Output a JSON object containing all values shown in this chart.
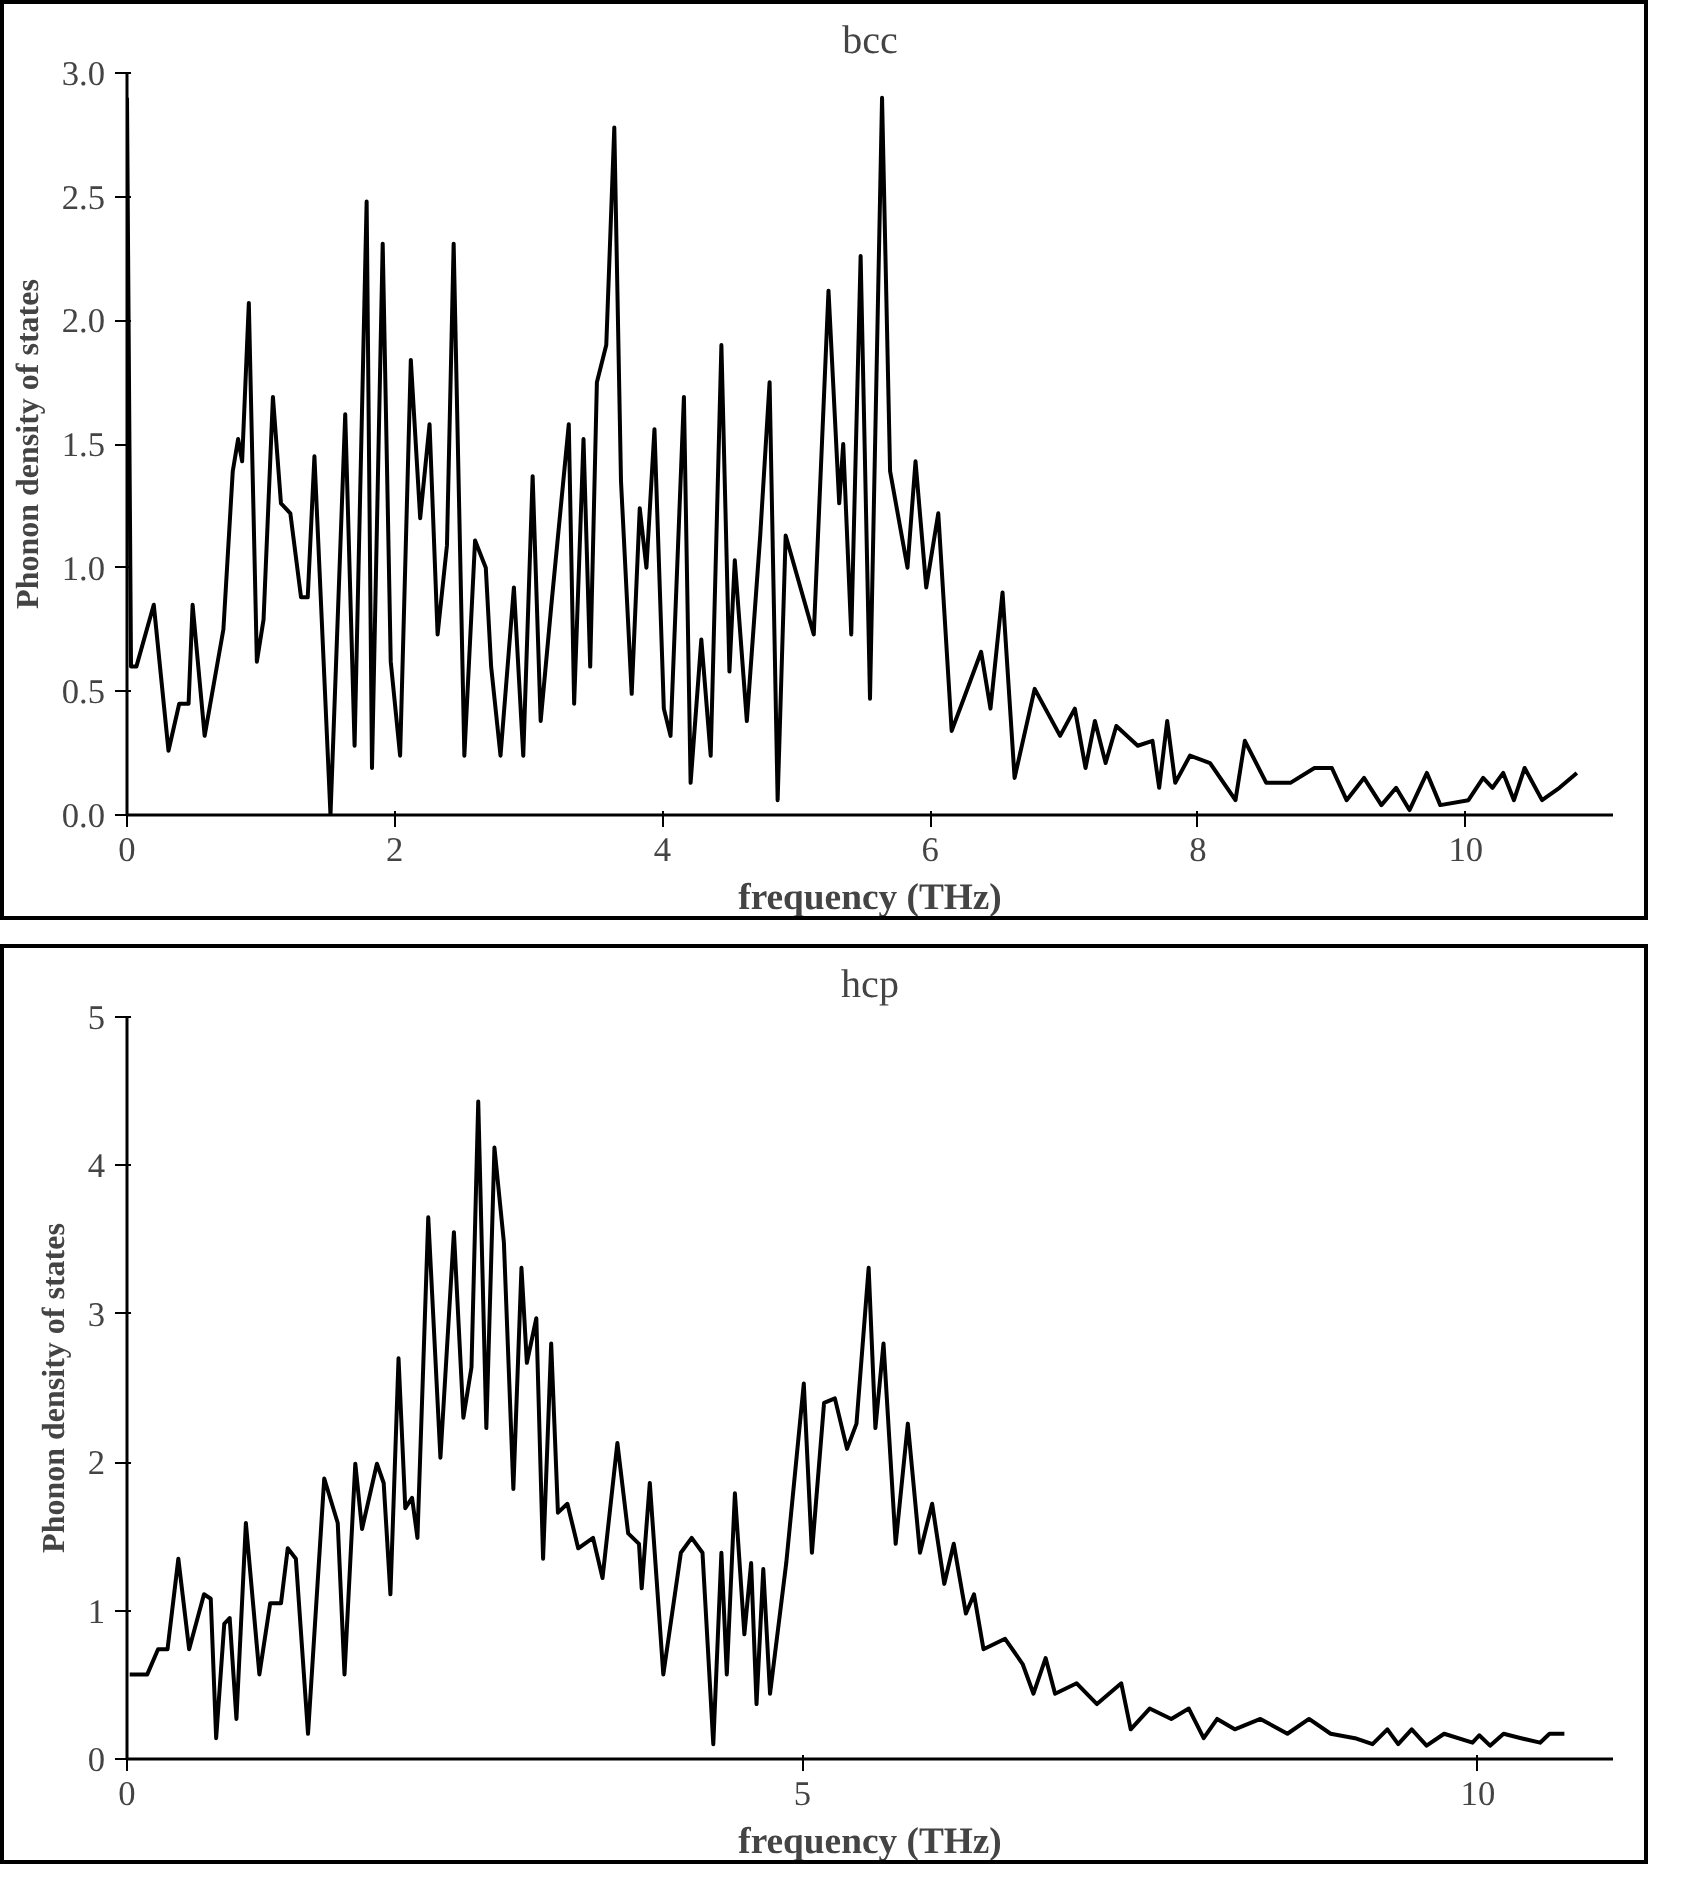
{
  "chart_data": [
    {
      "type": "line",
      "title": "bcc",
      "xlabel": "frequency (THz)",
      "ylabel": "Phonon density of states",
      "xlim": [
        0,
        11.1
      ],
      "ylim": [
        0,
        3.0
      ],
      "xticks": [
        0,
        2,
        4,
        6,
        8,
        10
      ],
      "yticks": [
        {
          "value": 0,
          "label": "0.0"
        },
        {
          "value": 0.5,
          "label": "0.5"
        },
        {
          "value": 1,
          "label": "1.0"
        },
        {
          "value": 1.5,
          "label": "1.5"
        },
        {
          "value": 2,
          "label": "2.0"
        },
        {
          "value": 2.5,
          "label": "2.5"
        },
        {
          "value": 3,
          "label": "3.0"
        }
      ],
      "grid": false,
      "marker": "none",
      "line_style": "solid",
      "series": [
        {
          "color": "#000000",
          "x": [
            0,
            0.03,
            0.07,
            0.2,
            0.31,
            0.39,
            0.46,
            0.49,
            0.58,
            0.72,
            0.79,
            0.83,
            0.86,
            0.91,
            0.97,
            1.02,
            1.09,
            1.15,
            1.22,
            1.3,
            1.35,
            1.4,
            1.52,
            1.63,
            1.7,
            1.79,
            1.83,
            1.91,
            1.97,
            2.04,
            2.12,
            2.19,
            2.26,
            2.32,
            2.39,
            2.44,
            2.52,
            2.6,
            2.68,
            2.72,
            2.79,
            2.89,
            2.96,
            3.03,
            3.09,
            3.17,
            3.3,
            3.34,
            3.41,
            3.46,
            3.51,
            3.58,
            3.64,
            3.69,
            3.77,
            3.83,
            3.88,
            3.94,
            4.01,
            4.06,
            4.16,
            4.21,
            4.29,
            4.36,
            4.44,
            4.5,
            4.54,
            4.63,
            4.73,
            4.8,
            4.86,
            4.92,
            5.13,
            5.24,
            5.32,
            5.35,
            5.41,
            5.48,
            5.55,
            5.64,
            5.7,
            5.83,
            5.89,
            5.97,
            6.06,
            6.16,
            6.25,
            6.38,
            6.45,
            6.54,
            6.63,
            6.78,
            6.97,
            7.08,
            7.16,
            7.23,
            7.31,
            7.39,
            7.55,
            7.66,
            7.71,
            7.77,
            7.83,
            7.94,
            8.09,
            8.28,
            8.35,
            8.51,
            8.69,
            8.87,
            9.0,
            9.11,
            9.24,
            9.37,
            9.48,
            9.58,
            9.71,
            9.81,
            10.02,
            10.13,
            10.2,
            10.28,
            10.36,
            10.44,
            10.57,
            10.7,
            10.83
          ],
          "values": [
            2.9,
            0.6,
            0.6,
            0.85,
            0.26,
            0.45,
            0.45,
            0.85,
            0.32,
            0.75,
            1.39,
            1.52,
            1.43,
            2.07,
            0.62,
            0.79,
            1.69,
            1.26,
            1.22,
            0.88,
            0.88,
            1.45,
            0.0,
            1.62,
            0.28,
            2.48,
            0.19,
            2.31,
            0.62,
            0.24,
            1.84,
            1.2,
            1.58,
            0.73,
            1.09,
            2.31,
            0.24,
            1.11,
            1.0,
            0.6,
            0.24,
            0.92,
            0.24,
            1.37,
            0.38,
            0.85,
            1.58,
            0.45,
            1.52,
            0.6,
            1.75,
            1.9,
            2.78,
            1.35,
            0.49,
            1.24,
            1.0,
            1.56,
            0.43,
            0.32,
            1.69,
            0.13,
            0.71,
            0.24,
            1.9,
            0.58,
            1.03,
            0.38,
            1.13,
            1.75,
            0.06,
            1.13,
            0.73,
            2.12,
            1.26,
            1.5,
            0.73,
            2.26,
            0.47,
            2.9,
            1.39,
            1.0,
            1.43,
            0.92,
            1.22,
            0.34,
            0.47,
            0.66,
            0.43,
            0.9,
            0.15,
            0.51,
            0.32,
            0.43,
            0.19,
            0.38,
            0.21,
            0.36,
            0.28,
            0.3,
            0.11,
            0.38,
            0.13,
            0.24,
            0.21,
            0.06,
            0.3,
            0.13,
            0.13,
            0.19,
            0.19,
            0.06,
            0.15,
            0.04,
            0.11,
            0.02,
            0.17,
            0.04,
            0.06,
            0.15,
            0.11,
            0.17,
            0.06,
            0.19,
            0.06,
            0.11,
            0.17
          ]
        }
      ]
    },
    {
      "type": "line",
      "title": "hcp",
      "xlabel": "frequency (THz)",
      "ylabel": "Phonon density of states",
      "xlim": [
        0,
        11
      ],
      "ylim": [
        0,
        5
      ],
      "xticks": [
        0,
        5,
        10
      ],
      "yticks": [
        0,
        1,
        2,
        3,
        4,
        5
      ],
      "grid": false,
      "marker": "none",
      "line_style": "solid",
      "series": [
        {
          "color": "#000000",
          "x": [
            0.02,
            0.15,
            0.23,
            0.3,
            0.38,
            0.46,
            0.57,
            0.62,
            0.66,
            0.72,
            0.76,
            0.81,
            0.88,
            0.98,
            1.06,
            1.14,
            1.19,
            1.25,
            1.34,
            1.46,
            1.56,
            1.61,
            1.69,
            1.74,
            1.85,
            1.9,
            1.95,
            2.01,
            2.06,
            2.11,
            2.15,
            2.23,
            2.32,
            2.42,
            2.49,
            2.55,
            2.6,
            2.66,
            2.72,
            2.79,
            2.86,
            2.92,
            2.96,
            3.03,
            3.08,
            3.14,
            3.19,
            3.26,
            3.34,
            3.45,
            3.52,
            3.63,
            3.71,
            3.79,
            3.81,
            3.87,
            3.97,
            4.1,
            4.18,
            4.26,
            4.34,
            4.4,
            4.44,
            4.5,
            4.57,
            4.62,
            4.66,
            4.71,
            4.76,
            4.88,
            5.01,
            5.07,
            5.16,
            5.24,
            5.33,
            5.4,
            5.49,
            5.54,
            5.6,
            5.69,
            5.78,
            5.87,
            5.96,
            6.05,
            6.12,
            6.21,
            6.27,
            6.34,
            6.5,
            6.63,
            6.71,
            6.8,
            6.87,
            7.03,
            7.18,
            7.36,
            7.43,
            7.57,
            7.73,
            7.86,
            7.97,
            8.07,
            8.2,
            8.39,
            8.59,
            8.75,
            8.91,
            9.09,
            9.22,
            9.33,
            9.41,
            9.51,
            9.62,
            9.75,
            9.96,
            10.01,
            10.09,
            10.19,
            10.32,
            10.46,
            10.53,
            10.64
          ],
          "values": [
            0.57,
            0.57,
            0.74,
            0.74,
            1.35,
            0.74,
            1.11,
            1.08,
            0.14,
            0.91,
            0.95,
            0.27,
            1.59,
            0.57,
            1.05,
            1.05,
            1.42,
            1.35,
            0.17,
            1.89,
            1.59,
            0.57,
            1.99,
            1.55,
            1.99,
            1.86,
            1.11,
            2.7,
            1.69,
            1.76,
            1.49,
            3.65,
            2.03,
            3.55,
            2.3,
            2.64,
            4.43,
            2.23,
            4.12,
            3.48,
            1.82,
            3.31,
            2.67,
            2.97,
            1.35,
            2.8,
            1.66,
            1.72,
            1.42,
            1.49,
            1.22,
            2.13,
            1.52,
            1.45,
            1.15,
            1.86,
            0.57,
            1.39,
            1.49,
            1.39,
            0.1,
            1.39,
            0.57,
            1.79,
            0.84,
            1.32,
            0.37,
            1.28,
            0.44,
            1.32,
            2.53,
            1.39,
            2.4,
            2.43,
            2.09,
            2.26,
            3.31,
            2.23,
            2.8,
            1.45,
            2.26,
            1.39,
            1.72,
            1.18,
            1.45,
            0.98,
            1.11,
            0.74,
            0.81,
            0.64,
            0.44,
            0.68,
            0.44,
            0.51,
            0.37,
            0.51,
            0.2,
            0.34,
            0.27,
            0.34,
            0.14,
            0.27,
            0.2,
            0.27,
            0.17,
            0.27,
            0.17,
            0.14,
            0.1,
            0.2,
            0.1,
            0.2,
            0.09,
            0.17,
            0.11,
            0.16,
            0.09,
            0.17,
            0.14,
            0.11,
            0.17,
            0.17
          ]
        }
      ]
    }
  ]
}
